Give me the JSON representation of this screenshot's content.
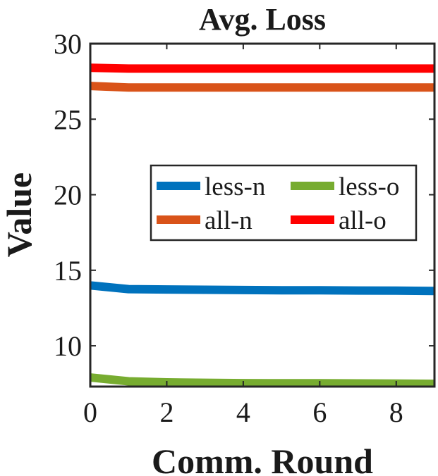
{
  "chart_data": {
    "type": "line",
    "title": "Avg. Loss",
    "xlabel": "Comm. Round",
    "ylabel": "Value",
    "xlim": [
      0,
      9
    ],
    "ylim": [
      7.3,
      30
    ],
    "xticks": [
      0,
      2,
      4,
      6,
      8
    ],
    "yticks": [
      10,
      15,
      20,
      25,
      30
    ],
    "grid": false,
    "legend_position": "center-right",
    "x": [
      0,
      1,
      2,
      3,
      4,
      5,
      6,
      7,
      8,
      9
    ],
    "series": [
      {
        "name": "less-n",
        "color": "#0072BD",
        "values": [
          14.0,
          13.75,
          13.73,
          13.71,
          13.69,
          13.67,
          13.67,
          13.66,
          13.65,
          13.63
        ]
      },
      {
        "name": "less-o",
        "color": "#77AC30",
        "values": [
          7.9,
          7.65,
          7.58,
          7.55,
          7.53,
          7.52,
          7.52,
          7.51,
          7.5,
          7.48
        ]
      },
      {
        "name": "all-n",
        "color": "#D95319",
        "values": [
          27.2,
          27.1,
          27.1,
          27.1,
          27.1,
          27.1,
          27.1,
          27.1,
          27.1,
          27.1
        ]
      },
      {
        "name": "all-o",
        "color": "#FF0000",
        "values": [
          28.4,
          28.35,
          28.35,
          28.35,
          28.35,
          28.35,
          28.35,
          28.35,
          28.35,
          28.35
        ]
      }
    ]
  }
}
